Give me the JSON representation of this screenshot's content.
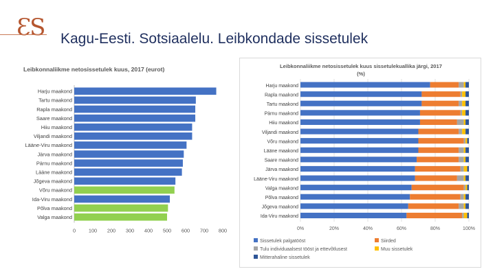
{
  "slide": {
    "logo_text": "ƐS",
    "title": "Kagu-Eesti. Sotsiaalelu. Leibkondade sissetulek"
  },
  "chart_data": [
    {
      "type": "bar",
      "orientation": "horizontal",
      "title": "Leibkonnaliikme netosissetulek kuus, 2017 (eurot)",
      "categories": [
        "Harju maakond",
        "Tartu maakond",
        "Rapla maakond",
        "Saare maakond",
        "Hiiu maakond",
        "Viljandi maakond",
        "Lääne-Viru maakond",
        "Järva maakond",
        "Pärnu maakond",
        "Lääne maakond",
        "Jõgeva maakond",
        "Võru maakond",
        "Ida-Viru maakond",
        "Põlva maakond",
        "Valga maakond"
      ],
      "values": [
        765,
        655,
        652,
        652,
        635,
        635,
        605,
        590,
        585,
        580,
        545,
        540,
        515,
        505,
        500
      ],
      "highlighted": [
        "Võru maakond",
        "Põlva maakond",
        "Valga maakond"
      ],
      "bar_color": "#4472c4",
      "highlight_color": "#92d050",
      "xlim": [
        0,
        800
      ],
      "xticks": [
        0,
        100,
        200,
        300,
        400,
        500,
        600,
        700,
        800
      ]
    },
    {
      "type": "bar",
      "orientation": "horizontal",
      "stacked": true,
      "title_lines": [
        "Leibkonnaliikme netosissetulek kuus sissetulekuallika järgi, 2017",
        "(%)"
      ],
      "categories": [
        "Harju maakond",
        "Rapla maakond",
        "Tartu maakond",
        "Pärnu maakond",
        "Hiiu maakond",
        "Viljandi maakond",
        "Võru maakond",
        "Lääne maakond",
        "Saare maakond",
        "Järva maakond",
        "Lääne-Viru maakond",
        "Valga maakond",
        "Põlva maakond",
        "Jõgeva maakond",
        "Ida-Viru maakond"
      ],
      "series": [
        {
          "name": "Sissetulek palgatööst",
          "color": "#4472c4",
          "values": [
            77,
            72,
            72,
            71,
            71,
            70,
            70,
            70,
            69,
            68,
            68,
            66,
            65,
            64,
            63
          ]
        },
        {
          "name": "Siirded",
          "color": "#ed7d31",
          "values": [
            17,
            23,
            22,
            24,
            22,
            24,
            27,
            24,
            25,
            27,
            25,
            31,
            30,
            30,
            33
          ]
        },
        {
          "name": "Tulu individuaalsest tööst ja ettevõtlusest",
          "color": "#a5a5a5",
          "values": [
            3,
            1,
            2,
            1,
            4,
            2,
            1,
            3,
            3,
            2,
            4,
            1,
            2,
            3,
            1
          ]
        },
        {
          "name": "Muu sissetulek",
          "color": "#ffc000",
          "values": [
            1,
            2,
            2,
            2,
            1,
            2,
            1,
            1,
            1,
            2,
            1,
            1,
            1,
            1,
            2
          ]
        },
        {
          "name": "Mitterahaline sissetulek",
          "color": "#2e5597",
          "values": [
            2,
            2,
            2,
            2,
            2,
            2,
            1,
            2,
            2,
            1,
            2,
            1,
            2,
            2,
            1
          ]
        }
      ],
      "xlim": [
        0,
        100
      ],
      "xtick_labels": [
        "0%",
        "20%",
        "40%",
        "60%",
        "80%",
        "100%"
      ],
      "legend_position": "bottom"
    }
  ]
}
